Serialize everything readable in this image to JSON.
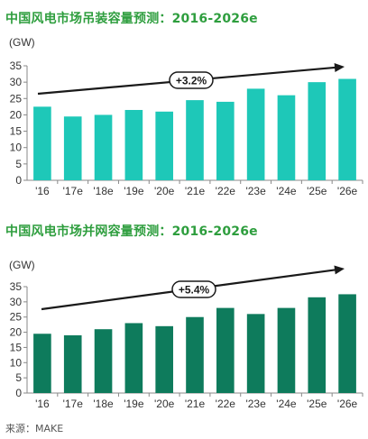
{
  "chart_data": [
    {
      "type": "bar",
      "title": "中国风电市场吊装容量预测：2016-2026e",
      "unit": "(GW)",
      "categories": [
        "'16",
        "'17e",
        "'18e",
        "'19e",
        "'20e",
        "'21e",
        "'22e",
        "'23e",
        "'24e",
        "'25e",
        "'26e"
      ],
      "values": [
        22.5,
        19.5,
        20,
        21.5,
        21,
        24.5,
        24,
        28,
        26,
        30,
        31
      ],
      "ylim": [
        0,
        35
      ],
      "yticks": [
        0,
        5,
        10,
        15,
        20,
        25,
        30,
        35
      ],
      "trend_label": "+3.2%",
      "color": "#1ec8b8",
      "grid": false
    },
    {
      "type": "bar",
      "title": "中国风电市场并网容量预测：2016-2026e",
      "unit": "(GW)",
      "categories": [
        "'16",
        "'17e",
        "'18e",
        "'19e",
        "'20e",
        "'21e",
        "'22e",
        "'23e",
        "'24e",
        "'25e",
        "'26e"
      ],
      "values": [
        19.5,
        19,
        21,
        23,
        22,
        25,
        28,
        26,
        28,
        31.5,
        32.5
      ],
      "ylim": [
        0,
        35
      ],
      "yticks": [
        0,
        5,
        10,
        15,
        20,
        25,
        30,
        35
      ],
      "trend_label": "+5.4%",
      "color": "#0e7b5c",
      "grid": false
    }
  ],
  "source": "来源：MAKE"
}
